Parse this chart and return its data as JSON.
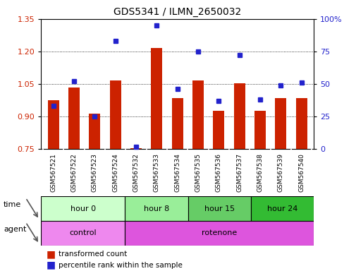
{
  "title": "GDS5341 / ILMN_2650032",
  "samples": [
    "GSM567521",
    "GSM567522",
    "GSM567523",
    "GSM567524",
    "GSM567532",
    "GSM567533",
    "GSM567534",
    "GSM567535",
    "GSM567536",
    "GSM567537",
    "GSM567538",
    "GSM567539",
    "GSM567540"
  ],
  "transformed_count": [
    0.975,
    1.035,
    0.915,
    1.065,
    0.755,
    1.215,
    0.985,
    1.065,
    0.925,
    1.055,
    0.925,
    0.985,
    0.985
  ],
  "percentile_rank": [
    33,
    52,
    25,
    83,
    2,
    95,
    46,
    75,
    37,
    72,
    38,
    49,
    51
  ],
  "ylim_left": [
    0.75,
    1.35
  ],
  "ylim_right": [
    0,
    100
  ],
  "yticks_left": [
    0.75,
    0.9,
    1.05,
    1.2,
    1.35
  ],
  "yticks_right": [
    0,
    25,
    50,
    75,
    100
  ],
  "ytick_labels_right": [
    "0",
    "25",
    "50",
    "75",
    "100%"
  ],
  "bar_color": "#cc2200",
  "dot_color": "#2222cc",
  "time_groups": [
    {
      "label": "hour 0",
      "start": 0,
      "end": 4,
      "color": "#ccffcc"
    },
    {
      "label": "hour 8",
      "start": 4,
      "end": 7,
      "color": "#99ee99"
    },
    {
      "label": "hour 15",
      "start": 7,
      "end": 10,
      "color": "#66cc66"
    },
    {
      "label": "hour 24",
      "start": 10,
      "end": 13,
      "color": "#33bb33"
    }
  ],
  "agent_groups": [
    {
      "label": "control",
      "start": 0,
      "end": 4,
      "color": "#ee88ee"
    },
    {
      "label": "rotenone",
      "start": 4,
      "end": 13,
      "color": "#dd55dd"
    }
  ],
  "background_color": "#ffffff",
  "sample_box_color": "#cccccc",
  "bar_baseline": 0.75
}
